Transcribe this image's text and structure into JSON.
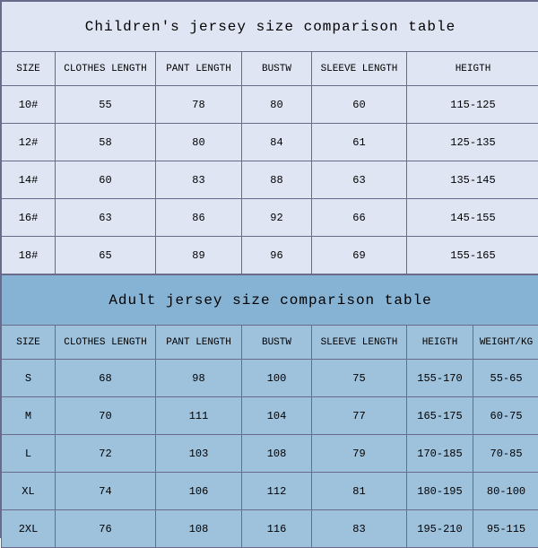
{
  "children": {
    "title": "Children's jersey size comparison table",
    "columns": [
      "SIZE",
      "CLOTHES LENGTH",
      "PANT LENGTH",
      "BUSTW",
      "SLEEVE LENGTH",
      "HEIGTH"
    ],
    "rows": [
      [
        "10#",
        "55",
        "78",
        "80",
        "60",
        "115-125"
      ],
      [
        "12#",
        "58",
        "80",
        "84",
        "61",
        "125-135"
      ],
      [
        "14#",
        "60",
        "83",
        "88",
        "63",
        "135-145"
      ],
      [
        "16#",
        "63",
        "86",
        "92",
        "66",
        "145-155"
      ],
      [
        "18#",
        "65",
        "89",
        "96",
        "69",
        "155-165"
      ]
    ]
  },
  "adult": {
    "title": "Adult jersey size comparison table",
    "columns": [
      "SIZE",
      "CLOTHES LENGTH",
      "PANT LENGTH",
      "BUSTW",
      "SLEEVE LENGTH",
      "HEIGTH",
      "WEIGHT/KG"
    ],
    "rows": [
      [
        "S",
        "68",
        "98",
        "100",
        "75",
        "155-170",
        "55-65"
      ],
      [
        "M",
        "70",
        "111",
        "104",
        "77",
        "165-175",
        "60-75"
      ],
      [
        "L",
        "72",
        "103",
        "108",
        "79",
        "170-185",
        "70-85"
      ],
      [
        "XL",
        "74",
        "106",
        "112",
        "81",
        "180-195",
        "80-100"
      ],
      [
        "2XL",
        "76",
        "108",
        "116",
        "83",
        "195-210",
        "95-115"
      ]
    ]
  },
  "style": {
    "children_bg": "#dfe5f3",
    "adult_bg": "#9ec1dc",
    "adult_title_bg": "#86b3d3",
    "border_color": "#6a6a8a",
    "font_family": "Courier New, monospace",
    "title_fontsize": 16,
    "header_fontsize": 11,
    "body_fontsize": 12
  }
}
